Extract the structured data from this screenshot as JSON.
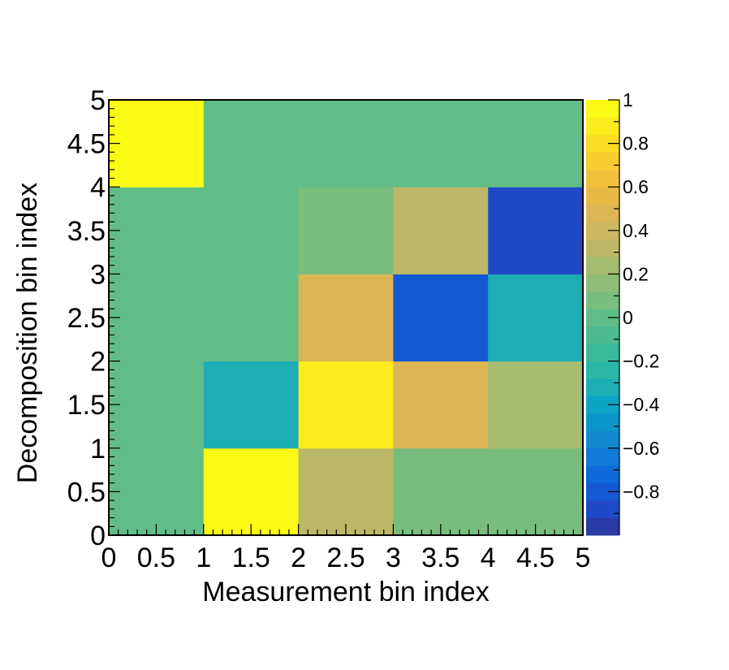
{
  "chart_data": {
    "type": "heatmap",
    "title": "",
    "xlabel": "Measurement bin index",
    "ylabel": "Decomposition bin index",
    "xlim": [
      0,
      5
    ],
    "ylim": [
      0,
      5
    ],
    "x_ticks": [
      "0",
      "0.5",
      "1",
      "1.5",
      "2",
      "2.5",
      "3",
      "3.5",
      "4",
      "4.5",
      "5"
    ],
    "y_ticks": [
      "0",
      "0.5",
      "1",
      "1.5",
      "2",
      "2.5",
      "3",
      "3.5",
      "4",
      "4.5",
      "5"
    ],
    "x_bins": [
      0,
      1,
      2,
      3,
      4
    ],
    "y_bins": [
      0,
      1,
      2,
      3,
      4
    ],
    "z": [
      [
        0.0,
        1.0,
        0.3,
        0.1,
        0.1
      ],
      [
        0.0,
        -0.3,
        0.9,
        0.5,
        0.25
      ],
      [
        0.0,
        0.0,
        0.5,
        -0.8,
        -0.3
      ],
      [
        0.0,
        0.0,
        0.1,
        0.3,
        -0.9
      ],
      [
        1.0,
        0.0,
        0.0,
        0.0,
        0.0
      ]
    ],
    "zlim": [
      -1,
      1
    ],
    "colorbar": {
      "ticks": [
        {
          "value": 1,
          "label": "1"
        },
        {
          "value": 0.8,
          "label": "0.8"
        },
        {
          "value": 0.6,
          "label": "0.6"
        },
        {
          "value": 0.4,
          "label": "0.4"
        },
        {
          "value": 0.2,
          "label": "0.2"
        },
        {
          "value": 0,
          "label": "0"
        },
        {
          "value": -0.2,
          "label": "−0.2"
        },
        {
          "value": -0.4,
          "label": "−0.4"
        },
        {
          "value": -0.6,
          "label": "−0.6"
        },
        {
          "value": -0.8,
          "label": "−0.8"
        }
      ],
      "palette": [
        "#2a3aa6",
        "#1f49c7",
        "#1459d4",
        "#0e69db",
        "#127ad8",
        "#1389d1",
        "#0c97cc",
        "#0ea5c4",
        "#1caeb4",
        "#2ab7a6",
        "#39b99c",
        "#4cbb92",
        "#61bd87",
        "#78bd7e",
        "#8fbd77",
        "#a6bc70",
        "#bbb968",
        "#cdb760",
        "#dcb654",
        "#e7ba47",
        "#f2c13b",
        "#f8cd2f",
        "#fbdc24",
        "#fcec1b",
        "#fafa14"
      ]
    }
  }
}
